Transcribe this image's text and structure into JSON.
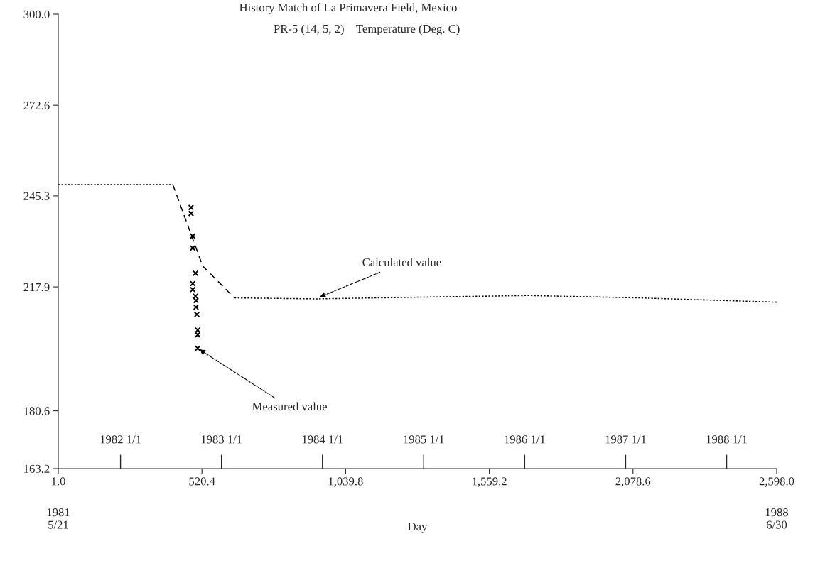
{
  "chart_data": {
    "type": "line",
    "title": "History Match of La Primavera Field, Mexico",
    "subtitle": "PR-5 (14, 5, 2)    Temperature (Deg. C)",
    "xlabel": "Day",
    "xlim": [
      1.0,
      2598.0
    ],
    "xticks": [
      {
        "value": 1.0,
        "label": "1.0"
      },
      {
        "value": 520.4,
        "label": "520.4"
      },
      {
        "value": 1039.8,
        "label": "1,039.8"
      },
      {
        "value": 1559.2,
        "label": "1,559.2"
      },
      {
        "value": 2078.6,
        "label": "2,078.6"
      },
      {
        "value": 2598.0,
        "label": "2,598.0"
      }
    ],
    "ylim": [
      163.2,
      300.0
    ],
    "yticks": [
      {
        "value": 163.2,
        "label": "163.2"
      },
      {
        "value": 180.6,
        "label": "180.6"
      },
      {
        "value": 217.9,
        "label": "217.9"
      },
      {
        "value": 245.3,
        "label": "245.3"
      },
      {
        "value": 272.6,
        "label": "272.6"
      },
      {
        "value": 300.0,
        "label": "300.0"
      }
    ],
    "grid": false,
    "legend": false,
    "series": [
      {
        "color": "#000000",
        "line_style": "dotted",
        "marker": "none",
        "x": [
          1,
          415
        ],
        "values": [
          248.7,
          248.7
        ]
      },
      {
        "color": "#000000",
        "line_style": "dashed",
        "marker": "none",
        "x": [
          415,
          523,
          638
        ],
        "values": [
          248.7,
          224.2,
          214.6
        ]
      },
      {
        "color": "#000000",
        "line_style": "dotted",
        "marker": "none",
        "x": [
          638,
          933,
          1300,
          1700,
          2100,
          2598
        ],
        "values": [
          214.6,
          214.3,
          214.8,
          215.3,
          214.6,
          213.3
        ]
      },
      {
        "type": "scatter",
        "color": "#000000",
        "marker": "cross",
        "x": [
          481,
          481,
          487,
          487,
          497,
          487,
          487,
          497,
          499,
          499,
          502,
          505,
          505,
          505
        ],
        "values": [
          241.8,
          240.0,
          233.2,
          229.6,
          222.0,
          218.9,
          217.1,
          215.1,
          213.8,
          211.8,
          209.6,
          204.9,
          203.5,
          199.4
        ]
      }
    ],
    "annotations": [
      {
        "text": "Calculated value",
        "x": 939,
        "y": 214.6
      },
      {
        "text": "Measured value",
        "x": 505,
        "y": 199.4
      },
      "1981\n5/21",
      "1988\n6/30"
    ],
    "x2lim": [
      "1981-05-21",
      "1988-06-30"
    ],
    "x2ticks": [
      {
        "value": "1982-01-01",
        "label": "1982 1/1"
      },
      {
        "value": "1983-01-01",
        "label": "1983 1/1"
      },
      {
        "value": "1984-01-01",
        "label": "1984 1/1"
      },
      {
        "value": "1985-01-01",
        "label": "1985 1/1"
      },
      {
        "value": "1986-01-01",
        "label": "1986 1/1"
      },
      {
        "value": "1987-01-01",
        "label": "1987 1/1"
      },
      {
        "value": "1988-01-01",
        "label": "1988 1/1"
      }
    ]
  }
}
